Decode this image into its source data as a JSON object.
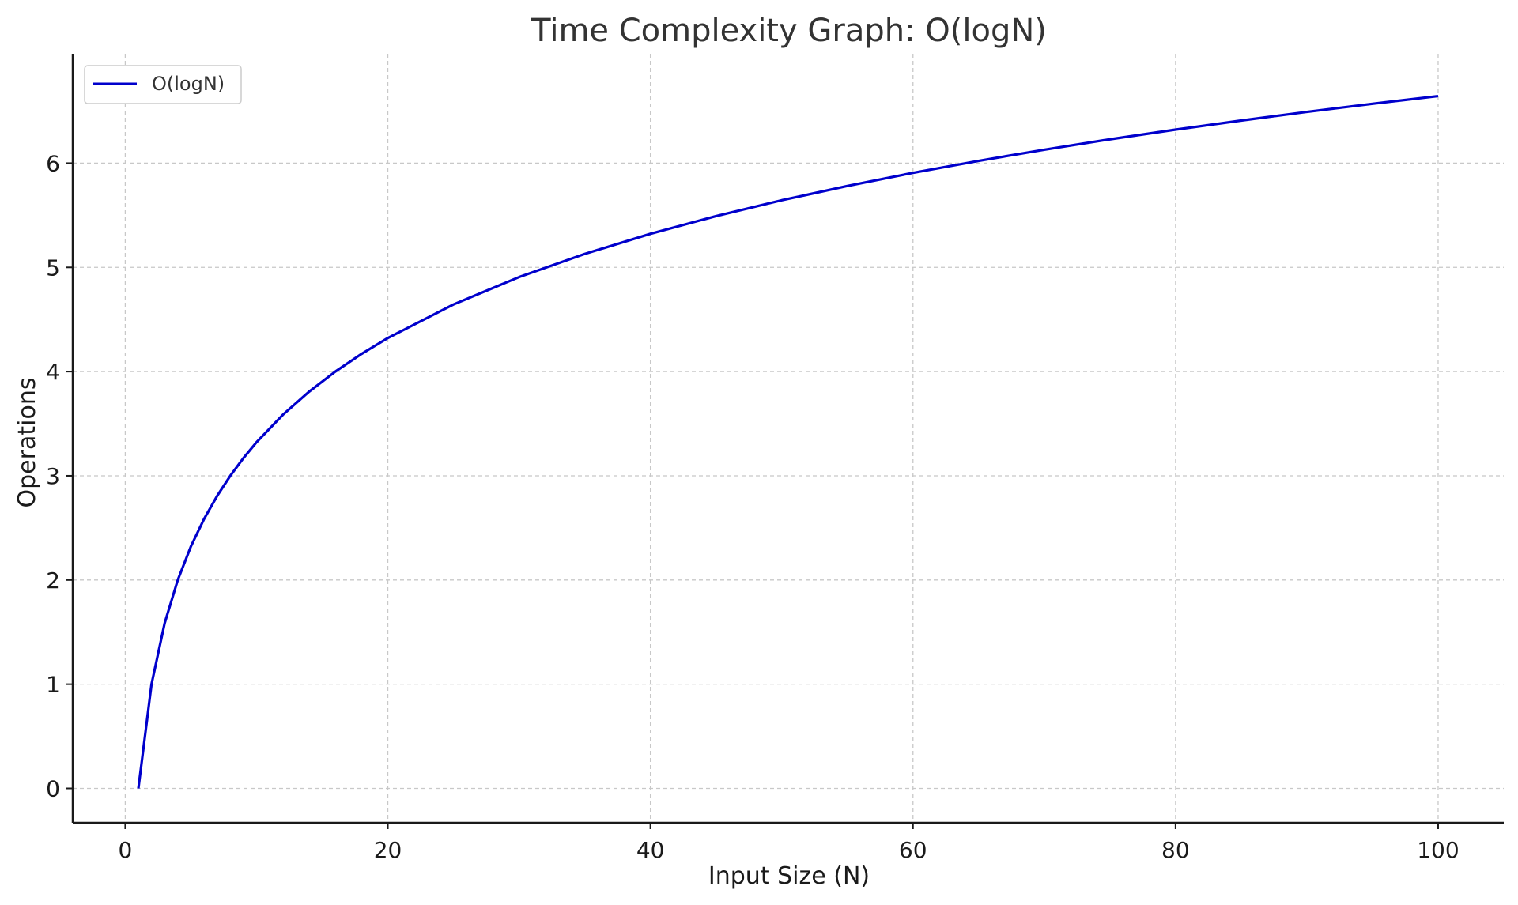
{
  "chart_data": {
    "type": "line",
    "title": "Time Complexity Graph: O(logN)",
    "xlabel": "Input Size (N)",
    "ylabel": "Operations",
    "xlim": [
      -4,
      105
    ],
    "ylim": [
      -0.33,
      7.05
    ],
    "xticks": [
      0,
      20,
      40,
      60,
      80,
      100
    ],
    "yticks": [
      0,
      1,
      2,
      3,
      4,
      5,
      6
    ],
    "grid": true,
    "legend_position": "top-left",
    "series": [
      {
        "name": "O(logN)",
        "color": "#0000cc",
        "x": [
          1,
          2,
          3,
          4,
          5,
          6,
          7,
          8,
          9,
          10,
          12,
          14,
          16,
          18,
          20,
          25,
          30,
          35,
          40,
          45,
          50,
          55,
          60,
          65,
          70,
          75,
          80,
          85,
          90,
          95,
          100
        ],
        "y": [
          0,
          1,
          1.585,
          2,
          2.322,
          2.585,
          2.807,
          3,
          3.17,
          3.322,
          3.585,
          3.807,
          4,
          4.17,
          4.322,
          4.644,
          4.907,
          5.129,
          5.322,
          5.492,
          5.644,
          5.781,
          5.907,
          6.022,
          6.129,
          6.229,
          6.322,
          6.409,
          6.492,
          6.57,
          6.644
        ]
      }
    ]
  }
}
